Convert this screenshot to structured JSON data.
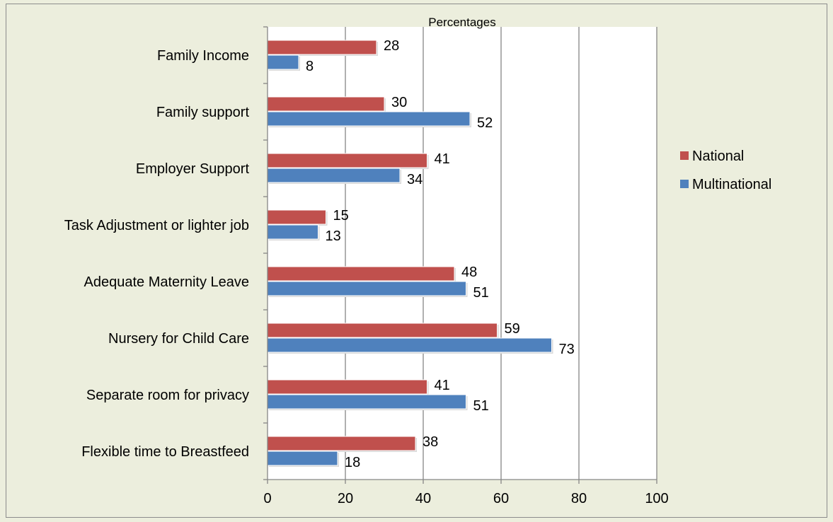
{
  "chart_data": {
    "type": "bar",
    "orientation": "horizontal",
    "title": "Percentages",
    "categories": [
      "Family Income",
      "Family support",
      "Employer Support",
      "Task Adjustment or lighter job",
      "Adequate Maternity Leave",
      "Nursery for Child Care",
      "Separate room for privacy",
      "Flexible time to Breastfeed"
    ],
    "series": [
      {
        "name": "National",
        "color": "#c0504d",
        "values": [
          28,
          30,
          41,
          15,
          48,
          59,
          41,
          38
        ]
      },
      {
        "name": "Multinational",
        "color": "#4f81bd",
        "values": [
          8,
          52,
          34,
          13,
          51,
          73,
          51,
          18
        ]
      }
    ],
    "xlim": [
      0,
      100
    ],
    "xticks": [
      0,
      20,
      40,
      60,
      80,
      100
    ],
    "grid": true,
    "legend_position": "right"
  }
}
